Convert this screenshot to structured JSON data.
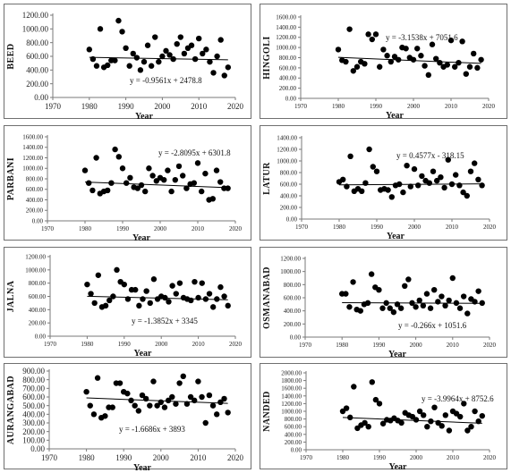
{
  "chart_data": [
    {
      "type": "scatter",
      "ylabel": "BEED",
      "xlabel": "Year",
      "xlim": [
        1970,
        2020
      ],
      "xticks": [
        1970,
        1980,
        1990,
        2000,
        2010,
        2020
      ],
      "ylim": [
        0,
        1200
      ],
      "yticks": [
        0,
        200,
        400,
        600,
        800,
        1000,
        1200
      ],
      "ytick_labels": [
        "0.00",
        "200.00",
        "400.00",
        "600.00",
        "800.00",
        "1000.00",
        "1200.00"
      ],
      "trend_equation": "y = -0.9561x + 2478.8",
      "trend": {
        "slope": -0.9561,
        "intercept": 2478.8
      },
      "x": [
        1980,
        1981,
        1982,
        1983,
        1984,
        1985,
        1986,
        1987,
        1988,
        1989,
        1990,
        1991,
        1992,
        1993,
        1994,
        1995,
        1996,
        1997,
        1998,
        1999,
        2000,
        2001,
        2002,
        2003,
        2004,
        2005,
        2006,
        2007,
        2008,
        2009,
        2010,
        2011,
        2012,
        2013,
        2014,
        2015,
        2016,
        2017,
        2018
      ],
      "y": [
        700,
        560,
        460,
        1000,
        440,
        470,
        540,
        540,
        1120,
        960,
        720,
        460,
        640,
        580,
        400,
        520,
        760,
        460,
        880,
        520,
        600,
        680,
        620,
        560,
        780,
        880,
        640,
        720,
        760,
        560,
        860,
        640,
        700,
        520,
        360,
        600,
        840,
        320,
        440
      ]
    },
    {
      "type": "scatter",
      "ylabel": "HINGOLI",
      "xlabel": "Year",
      "xlim": [
        1970,
        2020
      ],
      "xticks": [
        1970,
        1980,
        1990,
        2000,
        2010,
        2020
      ],
      "ylim": [
        0,
        1600
      ],
      "yticks": [
        0,
        200,
        400,
        600,
        800,
        1000,
        1200,
        1400,
        1600
      ],
      "ytick_labels": [
        "0.00",
        "200.00",
        "400.00",
        "600.00",
        "800.00",
        "1000.00",
        "1200.00",
        "1400.00",
        "1600.00"
      ],
      "trend_equation": "y = -3.1538x + 7051.6",
      "trend": {
        "slope": -3.1538,
        "intercept": 7051.6
      },
      "x": [
        1980,
        1981,
        1982,
        1983,
        1984,
        1985,
        1986,
        1987,
        1988,
        1989,
        1990,
        1991,
        1992,
        1993,
        1994,
        1995,
        1996,
        1997,
        1998,
        1999,
        2000,
        2001,
        2002,
        2003,
        2004,
        2005,
        2006,
        2007,
        2008,
        2009,
        2010,
        2011,
        2012,
        2013,
        2014,
        2015,
        2016,
        2017,
        2018
      ],
      "y": [
        960,
        750,
        720,
        1360,
        540,
        620,
        720,
        680,
        1260,
        1160,
        1260,
        620,
        960,
        840,
        720,
        820,
        760,
        1000,
        980,
        800,
        760,
        980,
        840,
        640,
        460,
        1060,
        780,
        700,
        620,
        660,
        1140,
        620,
        700,
        1120,
        480,
        620,
        880,
        600,
        760
      ]
    },
    {
      "type": "scatter",
      "ylabel": "PARBANI",
      "xlabel": "Year",
      "xlim": [
        1970,
        2020
      ],
      "xticks": [
        1970,
        1980,
        1990,
        2000,
        2010,
        2020
      ],
      "ylim": [
        0,
        1600
      ],
      "yticks": [
        0,
        200,
        400,
        600,
        800,
        1000,
        1200,
        1400,
        1600
      ],
      "ytick_labels": [
        "0.00",
        "200.00",
        "400.00",
        "600.00",
        "800.00",
        "1000.00",
        "1200.00",
        "1400.00",
        "1600.00"
      ],
      "trend_equation": "y = -2.8095x + 6301.8",
      "trend": {
        "slope": -2.8095,
        "intercept": 6301.8
      },
      "x": [
        1980,
        1981,
        1982,
        1983,
        1984,
        1985,
        1986,
        1987,
        1988,
        1989,
        1990,
        1991,
        1992,
        1993,
        1994,
        1995,
        1996,
        1997,
        1998,
        1999,
        2000,
        2001,
        2002,
        2003,
        2004,
        2005,
        2006,
        2007,
        2008,
        2009,
        2010,
        2011,
        2012,
        2013,
        2014,
        2015,
        2016,
        2017,
        2018
      ],
      "y": [
        960,
        720,
        580,
        1200,
        520,
        560,
        580,
        720,
        1360,
        1220,
        1000,
        720,
        820,
        640,
        620,
        680,
        560,
        1000,
        860,
        760,
        820,
        780,
        960,
        560,
        780,
        1040,
        860,
        620,
        700,
        720,
        1100,
        560,
        900,
        400,
        420,
        960,
        740,
        620,
        620
      ]
    },
    {
      "type": "scatter",
      "ylabel": "LATUR",
      "xlabel": "Year",
      "xlim": [
        1970,
        2020
      ],
      "xticks": [
        1970,
        1980,
        1990,
        2000,
        2010,
        2020
      ],
      "ylim": [
        0,
        1400
      ],
      "yticks": [
        0,
        200,
        400,
        600,
        800,
        1000,
        1200,
        1400
      ],
      "ytick_labels": [
        "0.00",
        "200.00",
        "400.00",
        "600.00",
        "800.00",
        "1000.00",
        "1200.00",
        "1400.00"
      ],
      "trend_equation": "y = 0.4577x - 318.15",
      "trend": {
        "slope": 0.4577,
        "intercept": -318.15
      },
      "x": [
        1980,
        1981,
        1982,
        1983,
        1984,
        1985,
        1986,
        1987,
        1988,
        1989,
        1990,
        1991,
        1992,
        1993,
        1994,
        1995,
        1996,
        1997,
        1998,
        1999,
        2000,
        2001,
        2002,
        2003,
        2004,
        2005,
        2006,
        2007,
        2008,
        2009,
        2010,
        2011,
        2012,
        2013,
        2014,
        2015,
        2016,
        2017,
        2018
      ],
      "y": [
        640,
        680,
        560,
        1080,
        480,
        520,
        480,
        620,
        1200,
        900,
        820,
        500,
        520,
        500,
        380,
        580,
        600,
        460,
        920,
        560,
        860,
        580,
        740,
        660,
        620,
        820,
        660,
        720,
        540,
        1020,
        600,
        760,
        580,
        460,
        400,
        820,
        960,
        680,
        580
      ]
    },
    {
      "type": "scatter",
      "ylabel": "JALNA",
      "xlabel": "Year",
      "xlim": [
        1970,
        2020
      ],
      "xticks": [
        1970,
        1980,
        1990,
        2000,
        2010,
        2020
      ],
      "ylim": [
        0,
        1200
      ],
      "yticks": [
        0,
        200,
        400,
        600,
        800,
        1000,
        1200
      ],
      "ytick_labels": [
        "0.00",
        "200.00",
        "400.00",
        "600.00",
        "800.00",
        "1000.00",
        "1200.00"
      ],
      "trend_equation": "y = -1.3852x + 3345",
      "trend": {
        "slope": -1.3852,
        "intercept": 3345
      },
      "x": [
        1980,
        1981,
        1982,
        1983,
        1984,
        1985,
        1986,
        1987,
        1988,
        1989,
        1990,
        1991,
        1992,
        1993,
        1994,
        1995,
        1996,
        1997,
        1998,
        1999,
        2000,
        2001,
        2002,
        2003,
        2004,
        2005,
        2006,
        2007,
        2008,
        2009,
        2010,
        2011,
        2012,
        2013,
        2014,
        2015,
        2016,
        2017,
        2018
      ],
      "y": [
        780,
        640,
        500,
        920,
        440,
        460,
        540,
        600,
        1000,
        820,
        780,
        560,
        700,
        700,
        460,
        560,
        680,
        500,
        860,
        560,
        600,
        580,
        520,
        760,
        640,
        800,
        580,
        560,
        540,
        820,
        580,
        800,
        560,
        640,
        440,
        560,
        740,
        600,
        460
      ]
    },
    {
      "type": "scatter",
      "ylabel": "OSMANABAD",
      "xlabel": "Year",
      "xlim": [
        1970,
        2020
      ],
      "xticks": [
        1970,
        1980,
        1990,
        2000,
        2010,
        2020
      ],
      "ylim": [
        0,
        1200
      ],
      "yticks": [
        0,
        200,
        400,
        600,
        800,
        1000,
        1200
      ],
      "ytick_labels": [
        "0.00",
        "200.00",
        "400.00",
        "600.00",
        "800.00",
        "1000.00",
        "1200.00"
      ],
      "trend_equation": "y = -0.266x + 1051.6",
      "trend": {
        "slope": -0.266,
        "intercept": 1051.6
      },
      "x": [
        1980,
        1981,
        1982,
        1983,
        1984,
        1985,
        1986,
        1987,
        1988,
        1989,
        1990,
        1991,
        1992,
        1993,
        1994,
        1995,
        1996,
        1997,
        1998,
        1999,
        2000,
        2001,
        2002,
        2003,
        2004,
        2005,
        2006,
        2007,
        2008,
        2009,
        2010,
        2011,
        2012,
        2013,
        2014,
        2015,
        2016,
        2017,
        2018
      ],
      "y": [
        660,
        660,
        460,
        840,
        420,
        400,
        500,
        520,
        960,
        760,
        720,
        440,
        520,
        440,
        380,
        500,
        440,
        780,
        880,
        520,
        460,
        560,
        480,
        660,
        440,
        720,
        540,
        620,
        480,
        560,
        900,
        520,
        440,
        620,
        360,
        580,
        540,
        700,
        520
      ]
    },
    {
      "type": "scatter",
      "ylabel": "AURANGABAD",
      "xlabel": "Year",
      "xlim": [
        1970,
        2020
      ],
      "xticks": [
        1970,
        1980,
        1990,
        2000,
        2010,
        2020
      ],
      "ylim": [
        0,
        900
      ],
      "yticks": [
        0,
        100,
        200,
        300,
        400,
        500,
        600,
        700,
        800,
        900
      ],
      "ytick_labels": [
        "0.00",
        "100.00",
        "200.00",
        "300.00",
        "400.00",
        "500.00",
        "600.00",
        "700.00",
        "800.00",
        "900.00"
      ],
      "trend_equation": "y = -1.6686x + 3893",
      "trend": {
        "slope": -1.6686,
        "intercept": 3893
      },
      "x": [
        1980,
        1981,
        1982,
        1983,
        1984,
        1985,
        1986,
        1987,
        1988,
        1989,
        1990,
        1991,
        1992,
        1993,
        1994,
        1995,
        1996,
        1997,
        1998,
        1999,
        2000,
        2001,
        2002,
        2003,
        2004,
        2005,
        2006,
        2007,
        2008,
        2009,
        2010,
        2011,
        2012,
        2013,
        2014,
        2015,
        2016,
        2017,
        2018
      ],
      "y": [
        660,
        500,
        400,
        820,
        360,
        380,
        480,
        480,
        760,
        760,
        660,
        640,
        560,
        500,
        440,
        620,
        580,
        500,
        780,
        500,
        540,
        480,
        560,
        600,
        520,
        760,
        840,
        520,
        600,
        560,
        780,
        600,
        300,
        620,
        500,
        400,
        540,
        580,
        420
      ]
    },
    {
      "type": "scatter",
      "ylabel": "NANDED",
      "xlabel": "Year",
      "xlim": [
        1970,
        2020
      ],
      "xticks": [
        1970,
        1980,
        1990,
        2000,
        2010,
        2020
      ],
      "ylim": [
        0,
        2000
      ],
      "yticks": [
        0,
        200,
        400,
        600,
        800,
        1000,
        1200,
        1400,
        1600,
        1800,
        2000
      ],
      "ytick_labels": [
        "0.00",
        "200.00",
        "400.00",
        "600.00",
        "800.00",
        "1000.00",
        "1200.00",
        "1400.00",
        "1600.00",
        "1800.00",
        "2000.00"
      ],
      "trend_equation": "y = -3.9964x + 8752.6",
      "trend": {
        "slope": -3.9964,
        "intercept": 8752.6
      },
      "x": [
        1980,
        1981,
        1982,
        1983,
        1984,
        1985,
        1986,
        1987,
        1988,
        1989,
        1990,
        1991,
        1992,
        1993,
        1994,
        1995,
        1996,
        1997,
        1998,
        1999,
        2000,
        2001,
        2002,
        2003,
        2004,
        2005,
        2006,
        2007,
        2008,
        2009,
        2010,
        2011,
        2012,
        2013,
        2014,
        2015,
        2016,
        2017,
        2018
      ],
      "y": [
        1000,
        1080,
        840,
        1640,
        560,
        640,
        700,
        600,
        1760,
        1300,
        1200,
        680,
        780,
        760,
        820,
        760,
        700,
        960,
        900,
        860,
        780,
        1000,
        900,
        600,
        740,
        1100,
        700,
        620,
        900,
        500,
        1000,
        940,
        860,
        1200,
        500,
        600,
        1000,
        740,
        880
      ]
    }
  ]
}
